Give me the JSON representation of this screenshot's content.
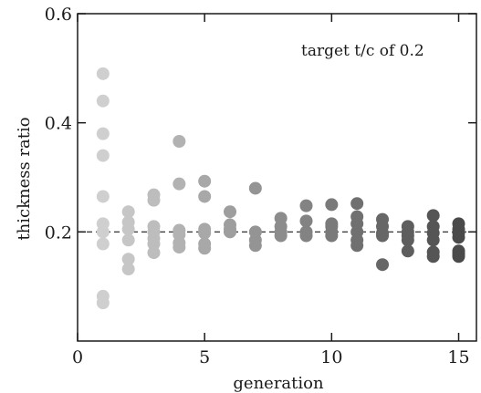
{
  "chart_data": {
    "type": "scatter",
    "title": "",
    "xlabel": "generation",
    "ylabel": "thickness ratio",
    "xlim": [
      0,
      15.7
    ],
    "ylim": [
      0,
      0.6
    ],
    "x_ticks": [
      0,
      5,
      10,
      15
    ],
    "x_tick_labels": [
      "0",
      "5",
      "10",
      "15"
    ],
    "y_ticks": [
      0.2,
      0.4,
      0.6
    ],
    "y_tick_labels": [
      "0.2",
      "0.4",
      "0.6"
    ],
    "grid": false,
    "legend": "none",
    "annotation": "target t/c of 0.2",
    "reference_line": {
      "y": 0.2,
      "style": "dashed"
    },
    "color_by_generation": {
      "1": "#cfcfcf",
      "2": "#c6c6c6",
      "3": "#bdbdbd",
      "4": "#b2b2b2",
      "5": "#a8a8a8",
      "6": "#9e9e9e",
      "7": "#949494",
      "8": "#8c8c8c",
      "9": "#838383",
      "10": "#7a7a7a",
      "11": "#707070",
      "12": "#676767",
      "13": "#5e5e5e",
      "14": "#555555",
      "15": "#4a4a4a"
    },
    "series": [
      {
        "generation": 1,
        "values": [
          0.49,
          0.44,
          0.38,
          0.34,
          0.265,
          0.215,
          0.2,
          0.178,
          0.082,
          0.07
        ]
      },
      {
        "generation": 2,
        "values": [
          0.237,
          0.218,
          0.205,
          0.185,
          0.15,
          0.132
        ]
      },
      {
        "generation": 3,
        "values": [
          0.268,
          0.258,
          0.21,
          0.2,
          0.188,
          0.178,
          0.162
        ]
      },
      {
        "generation": 4,
        "values": [
          0.366,
          0.288,
          0.203,
          0.195,
          0.18,
          0.172
        ]
      },
      {
        "generation": 5,
        "values": [
          0.293,
          0.265,
          0.205,
          0.198,
          0.178,
          0.17
        ]
      },
      {
        "generation": 6,
        "values": [
          0.237,
          0.213,
          0.205,
          0.2
        ]
      },
      {
        "generation": 7,
        "values": [
          0.28,
          0.2,
          0.185,
          0.175
        ]
      },
      {
        "generation": 8,
        "values": [
          0.225,
          0.21,
          0.2,
          0.193
        ]
      },
      {
        "generation": 9,
        "values": [
          0.248,
          0.22,
          0.2,
          0.193
        ]
      },
      {
        "generation": 10,
        "values": [
          0.25,
          0.215,
          0.21,
          0.2,
          0.193
        ]
      },
      {
        "generation": 11,
        "values": [
          0.252,
          0.228,
          0.215,
          0.2,
          0.185,
          0.175
        ]
      },
      {
        "generation": 12,
        "values": [
          0.223,
          0.21,
          0.198,
          0.193,
          0.14
        ]
      },
      {
        "generation": 13,
        "values": [
          0.21,
          0.2,
          0.193,
          0.185,
          0.165
        ]
      },
      {
        "generation": 14,
        "values": [
          0.23,
          0.21,
          0.198,
          0.185,
          0.163,
          0.155
        ]
      },
      {
        "generation": 15,
        "values": [
          0.215,
          0.205,
          0.198,
          0.19,
          0.165,
          0.16,
          0.155
        ]
      }
    ]
  }
}
